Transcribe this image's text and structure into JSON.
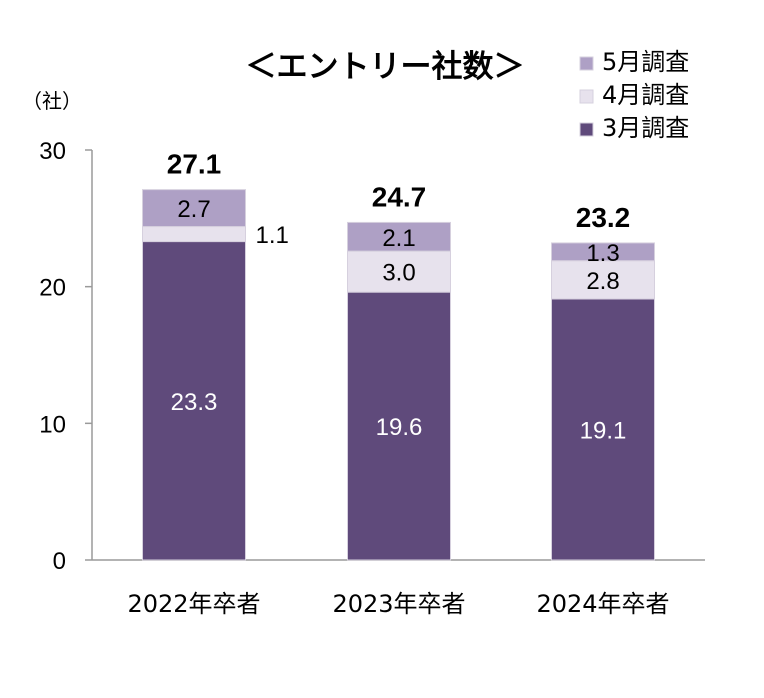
{
  "chart_data": {
    "type": "bar",
    "stacked": true,
    "title": "＜エントリー社数＞",
    "ylabel": "（社）",
    "xlabel": "",
    "ylim": [
      0,
      30
    ],
    "yticks": [
      0,
      10,
      20,
      30
    ],
    "grid": false,
    "legend_position": "top-right",
    "categories": [
      "2022年卒者",
      "2023年卒者",
      "2024年卒者"
    ],
    "series": [
      {
        "name": "3月調査",
        "values": [
          23.3,
          19.6,
          19.1
        ],
        "labels": [
          "23.3",
          "19.6",
          "19.1"
        ],
        "color": "#5f4a7b",
        "label_color": "#ffffff"
      },
      {
        "name": "4月調査",
        "values": [
          1.1,
          3.0,
          2.8
        ],
        "labels": [
          "1.1",
          "3.0",
          "2.8"
        ],
        "color": "#e7e2ed",
        "label_color": "#000000"
      },
      {
        "name": "5月調査",
        "values": [
          2.7,
          2.1,
          1.3
        ],
        "labels": [
          "2.7",
          "2.1",
          "1.3"
        ],
        "color": "#aea0c5",
        "label_color": "#000000"
      }
    ],
    "totals": [
      "27.1",
      "24.7",
      "23.2"
    ]
  }
}
